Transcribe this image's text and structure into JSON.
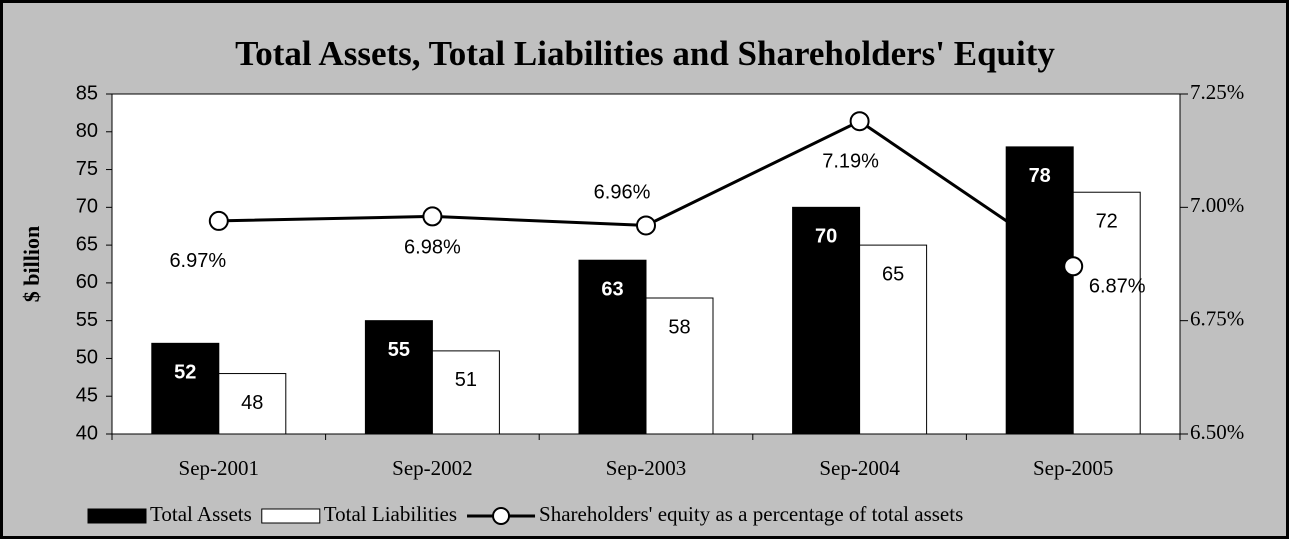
{
  "chart_data": {
    "type": "bar",
    "title": "Total Assets, Total Liabilities and Shareholders' Equity",
    "y_label": "$ billion",
    "categories": [
      "Sep-2001",
      "Sep-2002",
      "Sep-2003",
      "Sep-2004",
      "Sep-2005"
    ],
    "series": [
      {
        "name": "Total Assets",
        "color": "#000000",
        "values": [
          52,
          55,
          63,
          70,
          78
        ]
      },
      {
        "name": "Total Liabilities",
        "color": "#ffffff",
        "values": [
          48,
          51,
          58,
          65,
          72
        ]
      },
      {
        "name": "Shareholders' equity as a percentage of total assets",
        "type": "line",
        "axis": "y2",
        "color": "#000000",
        "values": [
          6.97,
          6.98,
          6.96,
          7.19,
          6.87
        ],
        "value_labels": [
          "6.97%",
          "6.98%",
          "6.96%",
          "7.19%",
          "6.87%"
        ]
      }
    ],
    "ylim": [
      40,
      85
    ],
    "yticks": [
      40,
      45,
      50,
      55,
      60,
      65,
      70,
      75,
      80,
      85
    ],
    "y2lim": [
      6.5,
      7.25
    ],
    "y2ticks": [
      {
        "value": 6.5,
        "label": "6.50%"
      },
      {
        "value": 6.75,
        "label": "6.75%"
      },
      {
        "value": 7.0,
        "label": "7.00%"
      },
      {
        "value": 7.25,
        "label": "7.25%"
      }
    ],
    "legend": "bottom"
  }
}
